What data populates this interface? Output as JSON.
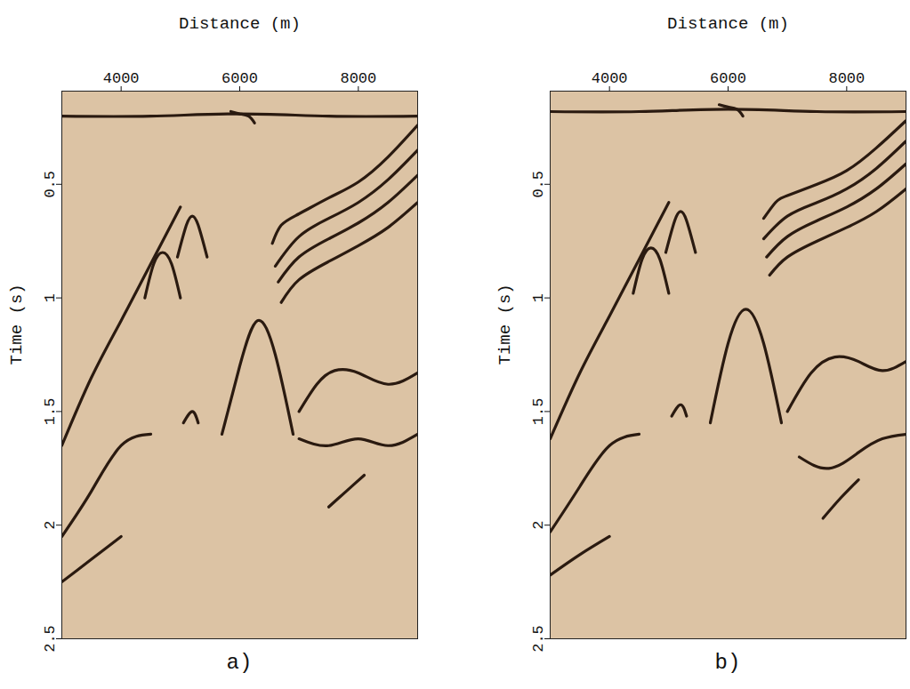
{
  "chart_data": [
    {
      "type": "line",
      "title": "a)",
      "x_label": "Distance (m)",
      "y_label": "Time (s)",
      "xlim": [
        3000,
        9000
      ],
      "ylim": [
        0.09,
        2.5
      ],
      "xticks": [
        4000,
        6000,
        8000
      ],
      "yticks": [
        0.5,
        1,
        1.5,
        2,
        2.5
      ],
      "color": "#2a1a10",
      "series": [
        {
          "x": [
            3000,
            4500,
            6000,
            7500,
            9000
          ],
          "values": [
            0.2,
            0.2,
            0.19,
            0.2,
            0.2
          ]
        },
        {
          "x": [
            5850,
            6000,
            6150,
            6250
          ],
          "values": [
            0.18,
            0.19,
            0.2,
            0.23
          ]
        },
        {
          "x": [
            6550,
            6700,
            7000,
            7500,
            8000,
            8500,
            9000
          ],
          "values": [
            0.76,
            0.68,
            0.63,
            0.56,
            0.49,
            0.38,
            0.24
          ]
        },
        {
          "x": [
            6600,
            7000,
            7500,
            8000,
            8500,
            9000
          ],
          "values": [
            0.86,
            0.73,
            0.65,
            0.58,
            0.48,
            0.35
          ]
        },
        {
          "x": [
            6650,
            7000,
            7500,
            8000,
            8500,
            9000
          ],
          "values": [
            0.93,
            0.82,
            0.74,
            0.67,
            0.58,
            0.46
          ]
        },
        {
          "x": [
            6700,
            7000,
            7500,
            8000,
            8500,
            9000
          ],
          "values": [
            1.02,
            0.92,
            0.84,
            0.77,
            0.69,
            0.58
          ]
        },
        {
          "x": [
            4400,
            4550,
            4700,
            4850,
            5000
          ],
          "values": [
            1.0,
            0.85,
            0.8,
            0.85,
            1.0
          ]
        },
        {
          "x": [
            4950,
            5100,
            5200,
            5300,
            5450
          ],
          "values": [
            0.82,
            0.68,
            0.64,
            0.68,
            0.82
          ]
        },
        {
          "x": [
            3000,
            3500,
            4000,
            4500,
            5000
          ],
          "values": [
            1.65,
            1.35,
            1.1,
            0.85,
            0.6
          ]
        },
        {
          "x": [
            3000,
            3500,
            4000,
            4500
          ],
          "values": [
            2.05,
            1.85,
            1.65,
            1.6
          ]
        },
        {
          "x": [
            3000,
            3500,
            4000
          ],
          "values": [
            2.25,
            2.15,
            2.05
          ]
        },
        {
          "x": [
            5700,
            6000,
            6300,
            6600,
            6900
          ],
          "values": [
            1.6,
            1.3,
            1.1,
            1.25,
            1.6
          ]
        },
        {
          "x": [
            7000,
            7300,
            7600,
            8000,
            8500,
            9000
          ],
          "values": [
            1.5,
            1.38,
            1.32,
            1.33,
            1.38,
            1.33
          ]
        },
        {
          "x": [
            7500,
            7800,
            8100
          ],
          "values": [
            1.92,
            1.85,
            1.78
          ]
        },
        {
          "x": [
            5050,
            5200,
            5300
          ],
          "values": [
            1.55,
            1.5,
            1.55
          ]
        },
        {
          "x": [
            7000,
            7500,
            8000,
            8500,
            9000
          ],
          "values": [
            1.62,
            1.65,
            1.62,
            1.65,
            1.6
          ]
        }
      ]
    },
    {
      "type": "line",
      "title": "b)",
      "x_label": "Distance (m)",
      "y_label": "Time (s)",
      "xlim": [
        3000,
        9000
      ],
      "ylim": [
        0.09,
        2.5
      ],
      "xticks": [
        4000,
        6000,
        8000
      ],
      "yticks": [
        0.5,
        1,
        1.5,
        2,
        2.5
      ],
      "color": "#2a1a10",
      "series": [
        {
          "x": [
            3000,
            4500,
            6000,
            7500,
            9000
          ],
          "values": [
            0.18,
            0.18,
            0.17,
            0.18,
            0.18
          ]
        },
        {
          "x": [
            5850,
            6000,
            6150,
            6250
          ],
          "values": [
            0.15,
            0.16,
            0.17,
            0.2
          ]
        },
        {
          "x": [
            6600,
            6800,
            7000,
            7500,
            8000,
            8500,
            9000
          ],
          "values": [
            0.65,
            0.58,
            0.55,
            0.5,
            0.44,
            0.34,
            0.22
          ]
        },
        {
          "x": [
            6600,
            7000,
            7500,
            8000,
            8500,
            9000
          ],
          "values": [
            0.74,
            0.64,
            0.58,
            0.52,
            0.43,
            0.31
          ]
        },
        {
          "x": [
            6650,
            7000,
            7500,
            8000,
            8500,
            9000
          ],
          "values": [
            0.82,
            0.73,
            0.66,
            0.6,
            0.52,
            0.41
          ]
        },
        {
          "x": [
            6700,
            7000,
            7500,
            8000,
            8500,
            9000
          ],
          "values": [
            0.9,
            0.82,
            0.75,
            0.69,
            0.62,
            0.52
          ]
        },
        {
          "x": [
            4400,
            4550,
            4700,
            4850,
            5000
          ],
          "values": [
            0.98,
            0.83,
            0.78,
            0.83,
            0.98
          ]
        },
        {
          "x": [
            4950,
            5100,
            5200,
            5300,
            5450
          ],
          "values": [
            0.8,
            0.66,
            0.62,
            0.66,
            0.8
          ]
        },
        {
          "x": [
            3000,
            3500,
            4000,
            4500,
            5000
          ],
          "values": [
            1.62,
            1.33,
            1.08,
            0.83,
            0.58
          ]
        },
        {
          "x": [
            3000,
            3500,
            4000,
            4500
          ],
          "values": [
            2.03,
            1.83,
            1.65,
            1.6
          ]
        },
        {
          "x": [
            3000,
            3500,
            4000
          ],
          "values": [
            2.22,
            2.13,
            2.05
          ]
        },
        {
          "x": [
            5700,
            6000,
            6300,
            6600,
            6900
          ],
          "values": [
            1.55,
            1.2,
            1.05,
            1.2,
            1.55
          ]
        },
        {
          "x": [
            7000,
            7400,
            7800,
            8200,
            8600,
            9000
          ],
          "values": [
            1.5,
            1.33,
            1.26,
            1.28,
            1.32,
            1.28
          ]
        },
        {
          "x": [
            7600,
            7900,
            8200
          ],
          "values": [
            1.97,
            1.88,
            1.8
          ]
        },
        {
          "x": [
            5050,
            5200,
            5300
          ],
          "values": [
            1.52,
            1.47,
            1.52
          ]
        },
        {
          "x": [
            7200,
            7700,
            8200,
            8600,
            9000
          ],
          "values": [
            1.7,
            1.75,
            1.68,
            1.62,
            1.6
          ]
        }
      ]
    }
  ]
}
